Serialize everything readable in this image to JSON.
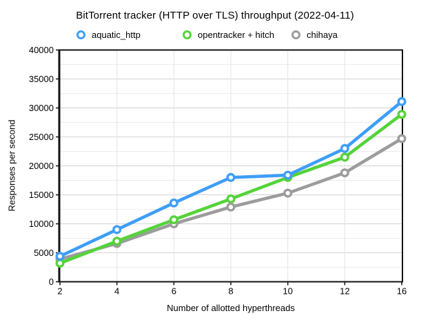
{
  "title": "BitTorrent tracker (HTTP over TLS) throughput (2022-04-11)",
  "colors": {
    "aquatic": "#3E9EF7",
    "opentracker": "#55D33B",
    "chihaya": "#9C9C9C",
    "grid_major": "#D2D2D2",
    "grid_minor": "#ECECEC",
    "grid_vertical": "#E4E4E4",
    "frame": "#111111",
    "background": "#FFFFFF"
  },
  "chart_data": {
    "type": "line",
    "title": "BitTorrent tracker (HTTP over TLS) throughput (2022-04-11)",
    "xlabel": "Number of allotted hyperthreads",
    "ylabel": "Responses per second",
    "categories": [
      2,
      4,
      6,
      8,
      10,
      12,
      16
    ],
    "x_tick_labels": [
      "2",
      "4",
      "6",
      "8",
      "10",
      "12",
      "16"
    ],
    "x_spacing": "categorical-even",
    "ylim": [
      0,
      40000
    ],
    "y_major_tick_step": 5000,
    "y_minor_gridline_step": 2500,
    "y_tick_labels": [
      "0",
      "5000",
      "10000",
      "15000",
      "20000",
      "25000",
      "30000",
      "35000",
      "40000"
    ],
    "grid": true,
    "legend_position": "top",
    "marker_style": "open-circle-white-fill",
    "series": [
      {
        "name": "aquatic_http",
        "color": "#3E9EF7",
        "values": [
          4400,
          9000,
          13600,
          18000,
          18400,
          23000,
          31100
        ]
      },
      {
        "name": "opentracker + hitch",
        "color": "#55D33B",
        "values": [
          3200,
          7000,
          10700,
          14300,
          18000,
          21500,
          28900
        ]
      },
      {
        "name": "chihaya",
        "color": "#9C9C9C",
        "values": [
          3900,
          6600,
          10000,
          12900,
          15300,
          18800,
          24700
        ]
      }
    ]
  },
  "legend": {
    "items": [
      {
        "label": "aquatic_http"
      },
      {
        "label": "opentracker + hitch"
      },
      {
        "label": "chihaya"
      }
    ]
  }
}
